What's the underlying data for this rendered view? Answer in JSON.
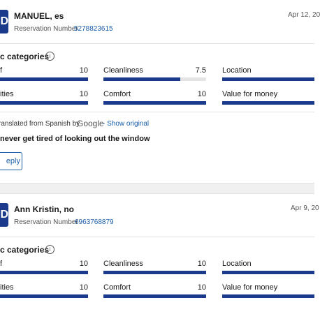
{
  "reviews": [
    {
      "avatar": "D",
      "name": "MANUEL, es",
      "reservation_label": "Reservation Number",
      "reservation_number": "5278823615",
      "date": "Apr 12, 20",
      "categories_title": "c categories",
      "info_icon": "i",
      "scores": [
        {
          "label": "f",
          "value": 10
        },
        {
          "label": "Cleanliness",
          "value": 7.5
        },
        {
          "label": "Location"
        },
        {
          "label": "ities",
          "value": 10
        },
        {
          "label": "Comfort",
          "value": 10
        },
        {
          "label": "Value for money"
        }
      ],
      "translation": {
        "prefix": "ranslated from Spanish by",
        "brand": "Google",
        "link": "- Show original"
      },
      "text": "never get tired of looking out the window",
      "reply": "eply"
    },
    {
      "avatar": "D",
      "name": "Ann Kristin, no",
      "reservation_label": "Reservation Number",
      "reservation_number": "6963768879",
      "date": "Apr 9, 20",
      "categories_title": "c categories",
      "info_icon": "i",
      "scores": [
        {
          "label": "f",
          "value": 10
        },
        {
          "label": "Cleanliness",
          "value": 10
        },
        {
          "label": "Location"
        },
        {
          "label": "ities",
          "value": 10
        },
        {
          "label": "Comfort",
          "value": 10
        },
        {
          "label": "Value for money"
        }
      ]
    }
  ],
  "score_max": 10
}
